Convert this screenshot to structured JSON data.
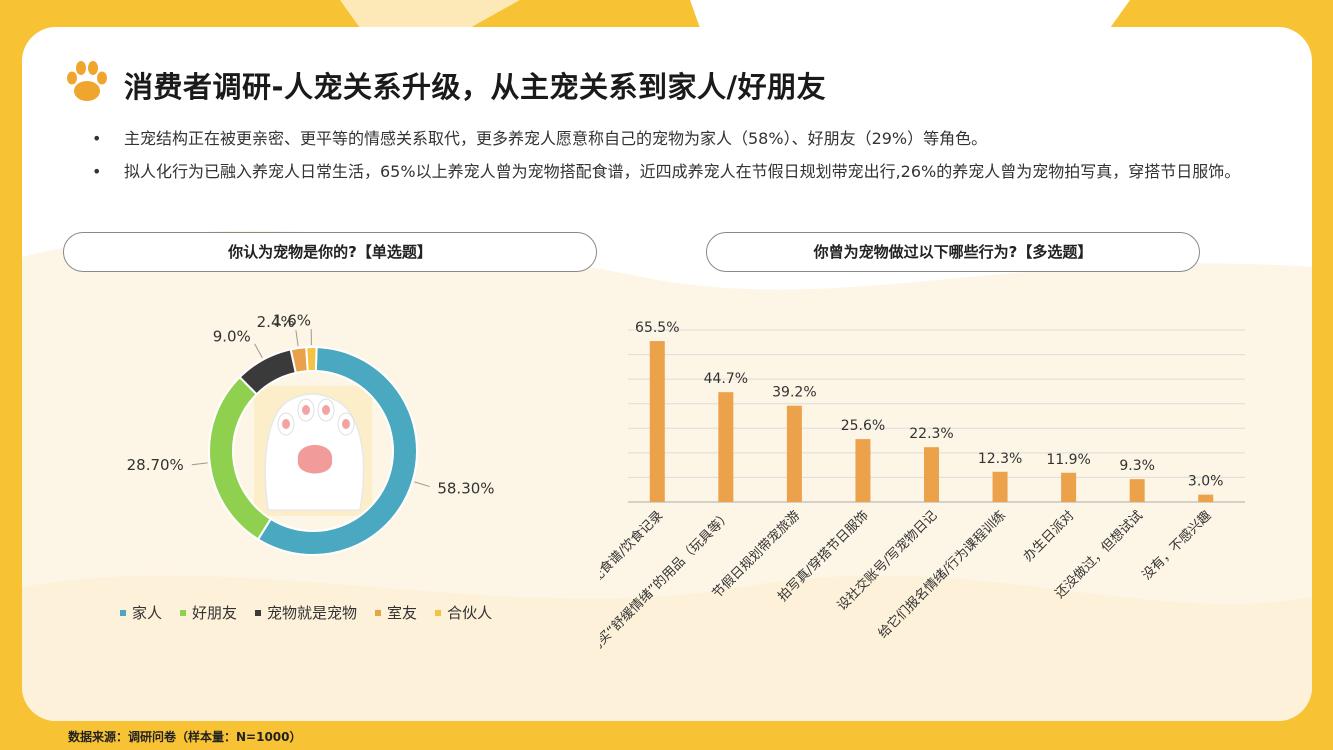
{
  "header": {
    "title": "消费者调研-人宠关系升级，从主宠关系到家人/好朋友"
  },
  "bullets": [
    "主宠结构正在被更亲密、更平等的情感关系取代，更多养宠人愿意称自己的宠物为家人（58%）、好朋友（29%）等角色。",
    "拟人化行为已融入养宠人日常生活，65%以上养宠人曾为宠物搭配食谱，近四成养宠人在节假日规划带宠出行,26%的养宠人曾为宠物拍写真，穿搭节日服饰。"
  ],
  "bullet_marker": "•",
  "left_panel": {
    "title": "你认为宠物是你的?【单选题】"
  },
  "right_panel": {
    "title": "你曾为宠物做过以下哪些行为?【多选题】"
  },
  "footer": {
    "source": "数据来源：调研问卷（样本量：N=1000）"
  },
  "colors": {
    "accent": "#f7c234",
    "family": "#4aa8c0",
    "friend": "#8fd14f",
    "pet": "#3a3a3a",
    "roommate": "#e9a24b",
    "partner": "#f5c343",
    "bar": "#eba24a"
  },
  "chart_data": [
    {
      "type": "pie",
      "style": "donut",
      "categories": [
        "家人",
        "好朋友",
        "宠物就是宠物",
        "室友",
        "合伙人"
      ],
      "values": [
        58.3,
        28.7,
        9.0,
        2.4,
        1.6
      ],
      "labels": [
        "58.30%",
        "28.70%",
        "9.0%",
        "2.4%",
        "1.6%"
      ],
      "colors": [
        "#4aa8c0",
        "#8fd14f",
        "#3a3a3a",
        "#e9a24b",
        "#f5c343"
      ],
      "legend": "bottom"
    },
    {
      "type": "bar",
      "categories": [
        "搭配食谱/饮食记录",
        "购买“舒缓情绪”的用品（玩具等）",
        "节假日规划带宠旅游",
        "拍写真/穿搭节日服饰",
        "设社交账号/写宠物日记",
        "给它们报名情绪/行为课程训练",
        "办生日派对",
        "还没做过，但想试试",
        "没有，不感兴趣"
      ],
      "values": [
        65.5,
        44.7,
        39.2,
        25.6,
        22.3,
        12.3,
        11.9,
        9.3,
        3.0
      ],
      "labels": [
        "65.5%",
        "44.7%",
        "39.2%",
        "25.6%",
        "22.3%",
        "12.3%",
        "11.9%",
        "9.3%",
        "3.0%"
      ],
      "ylim": [
        0,
        70
      ],
      "grid": true
    }
  ]
}
